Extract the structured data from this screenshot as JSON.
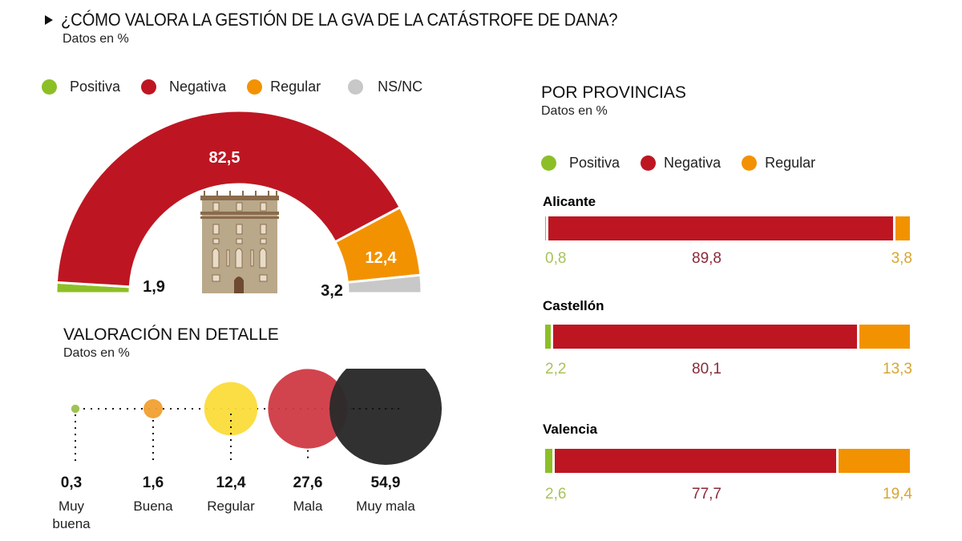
{
  "header": {
    "title": "¿CÓMO VALORA LA GESTIÓN DE LA GVA DE LA CATÁSTROFE DE DANA?",
    "subtitle": "Datos en %"
  },
  "colors": {
    "positiva": "#8cbf26",
    "negativa": "#bd1622",
    "regular": "#f39200",
    "nsnc": "#c8c8c8",
    "muy_buena": "#9bbf4a",
    "buena": "#f0a030",
    "regular_detail": "#fbdc3a",
    "mala": "#cf3a45",
    "muy_mala": "#2b2a2b",
    "building": "#b9a88a"
  },
  "chart_data": [
    {
      "type": "pie",
      "variant": "semicircle-donut",
      "title": "¿CÓMO VALORA LA GESTIÓN DE LA GVA DE LA CATÁSTROFE DE DANA?",
      "subtitle": "Datos en %",
      "legend": [
        "Positiva",
        "Negativa",
        "Regular",
        "NS/NC"
      ],
      "legend_position": "top-left",
      "slices": [
        {
          "label": "Positiva",
          "value": 1.9,
          "display": "1,9"
        },
        {
          "label": "Negativa",
          "value": 82.5,
          "display": "82,5"
        },
        {
          "label": "Regular",
          "value": 12.4,
          "display": "12,4"
        },
        {
          "label": "NS/NC",
          "value": 3.2,
          "display": "3,2"
        }
      ]
    },
    {
      "type": "scatter",
      "variant": "bubble",
      "title": "VALORACIÓN EN DETALLE",
      "subtitle": "Datos en %",
      "categories": [
        "Muy buena",
        "Buena",
        "Regular",
        "Mala",
        "Muy mala"
      ],
      "values": [
        0.3,
        1.6,
        12.4,
        27.6,
        54.9
      ],
      "display": [
        "0,3",
        "1,6",
        "12,4",
        "27,6",
        "54,9"
      ],
      "label_lines": [
        [
          "Muy",
          "buena"
        ],
        [
          "Buena"
        ],
        [
          "Regular"
        ],
        [
          "Mala"
        ],
        [
          "Muy mala"
        ]
      ]
    },
    {
      "type": "bar",
      "variant": "stacked-horizontal-100",
      "title": "POR PROVINCIAS",
      "subtitle": "Datos en %",
      "legend": [
        "Positiva",
        "Negativa",
        "Regular"
      ],
      "legend_position": "top-left",
      "categories": [
        "Alicante",
        "Castellón",
        "Valencia"
      ],
      "series": [
        {
          "name": "Positiva",
          "values": [
            0.8,
            2.2,
            2.6
          ],
          "display": [
            "0,8",
            "2,2",
            "2,6"
          ]
        },
        {
          "name": "Negativa",
          "values": [
            89.8,
            80.1,
            77.7
          ],
          "display": [
            "89,8",
            "80,1",
            "77,7"
          ]
        },
        {
          "name": "Regular",
          "values": [
            3.8,
            13.3,
            19.4
          ],
          "display": [
            "3,8",
            "13,3",
            "19,4"
          ]
        }
      ]
    }
  ]
}
